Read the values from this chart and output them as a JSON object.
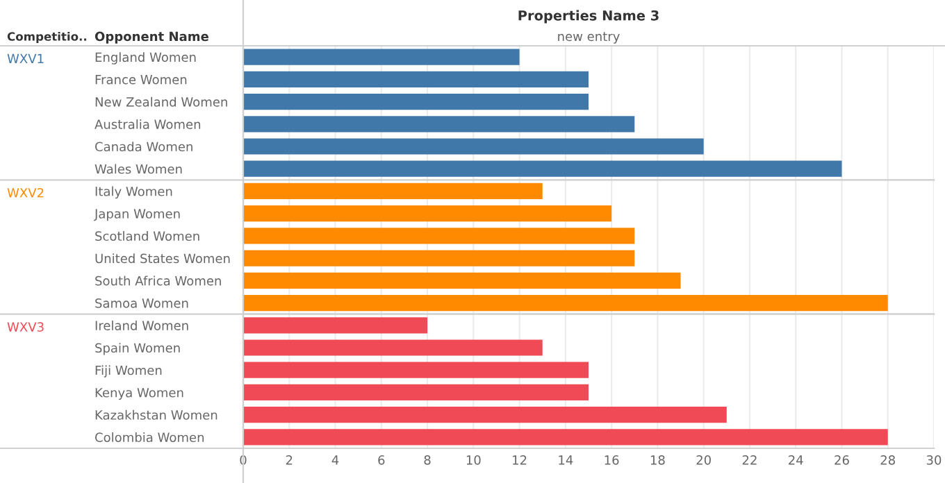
{
  "chart_data": [
    {
      "type": "bar",
      "orientation": "horizontal",
      "title": "Properties Name 3",
      "subtitle": "new entry",
      "ylabel": "Opponent Name",
      "annotations": [
        "Competitio.."
      ],
      "categories": [
        "England Women",
        "France Women",
        "New Zealand Women",
        "Australia Women",
        "Canada Women",
        "Wales Women"
      ],
      "series": [
        {
          "name": "WXV1",
          "color": "#4078aa",
          "values": [
            12,
            15,
            15,
            17,
            20,
            26
          ]
        }
      ],
      "xlim": [
        0,
        30
      ],
      "xticks": [
        0,
        2,
        4,
        6,
        8,
        10,
        12,
        14,
        16,
        18,
        20,
        22,
        24,
        26,
        28,
        30
      ],
      "grid": "x",
      "tick_labels": "y"
    },
    {
      "type": "bar",
      "orientation": "horizontal",
      "categories": [
        "Italy Women",
        "Japan Women",
        "Scotland Women",
        "United States Women",
        "South Africa Women",
        "Samoa Women"
      ],
      "series": [
        {
          "name": "WXV2",
          "color": "#ff8a00",
          "values": [
            13,
            16,
            17,
            17,
            19,
            28
          ]
        }
      ],
      "xlim": [
        0,
        30
      ],
      "xticks": [
        0,
        2,
        4,
        6,
        8,
        10,
        12,
        14,
        16,
        18,
        20,
        22,
        24,
        26,
        28,
        30
      ],
      "grid": "x",
      "tick_labels": "y"
    },
    {
      "type": "bar",
      "orientation": "horizontal",
      "categories": [
        "Ireland Women",
        "Spain Women",
        "Fiji Women",
        "Kenya Women",
        "Kazakhstan Women",
        "Colombia Women"
      ],
      "series": [
        {
          "name": "WXV3",
          "color": "#f04a56",
          "values": [
            8,
            13,
            15,
            15,
            21,
            28
          ]
        }
      ],
      "xlim": [
        0,
        30
      ],
      "xticks": [
        0,
        2,
        4,
        6,
        8,
        10,
        12,
        14,
        16,
        18,
        20,
        22,
        24,
        26,
        28,
        30
      ],
      "grid": "x"
    }
  ]
}
